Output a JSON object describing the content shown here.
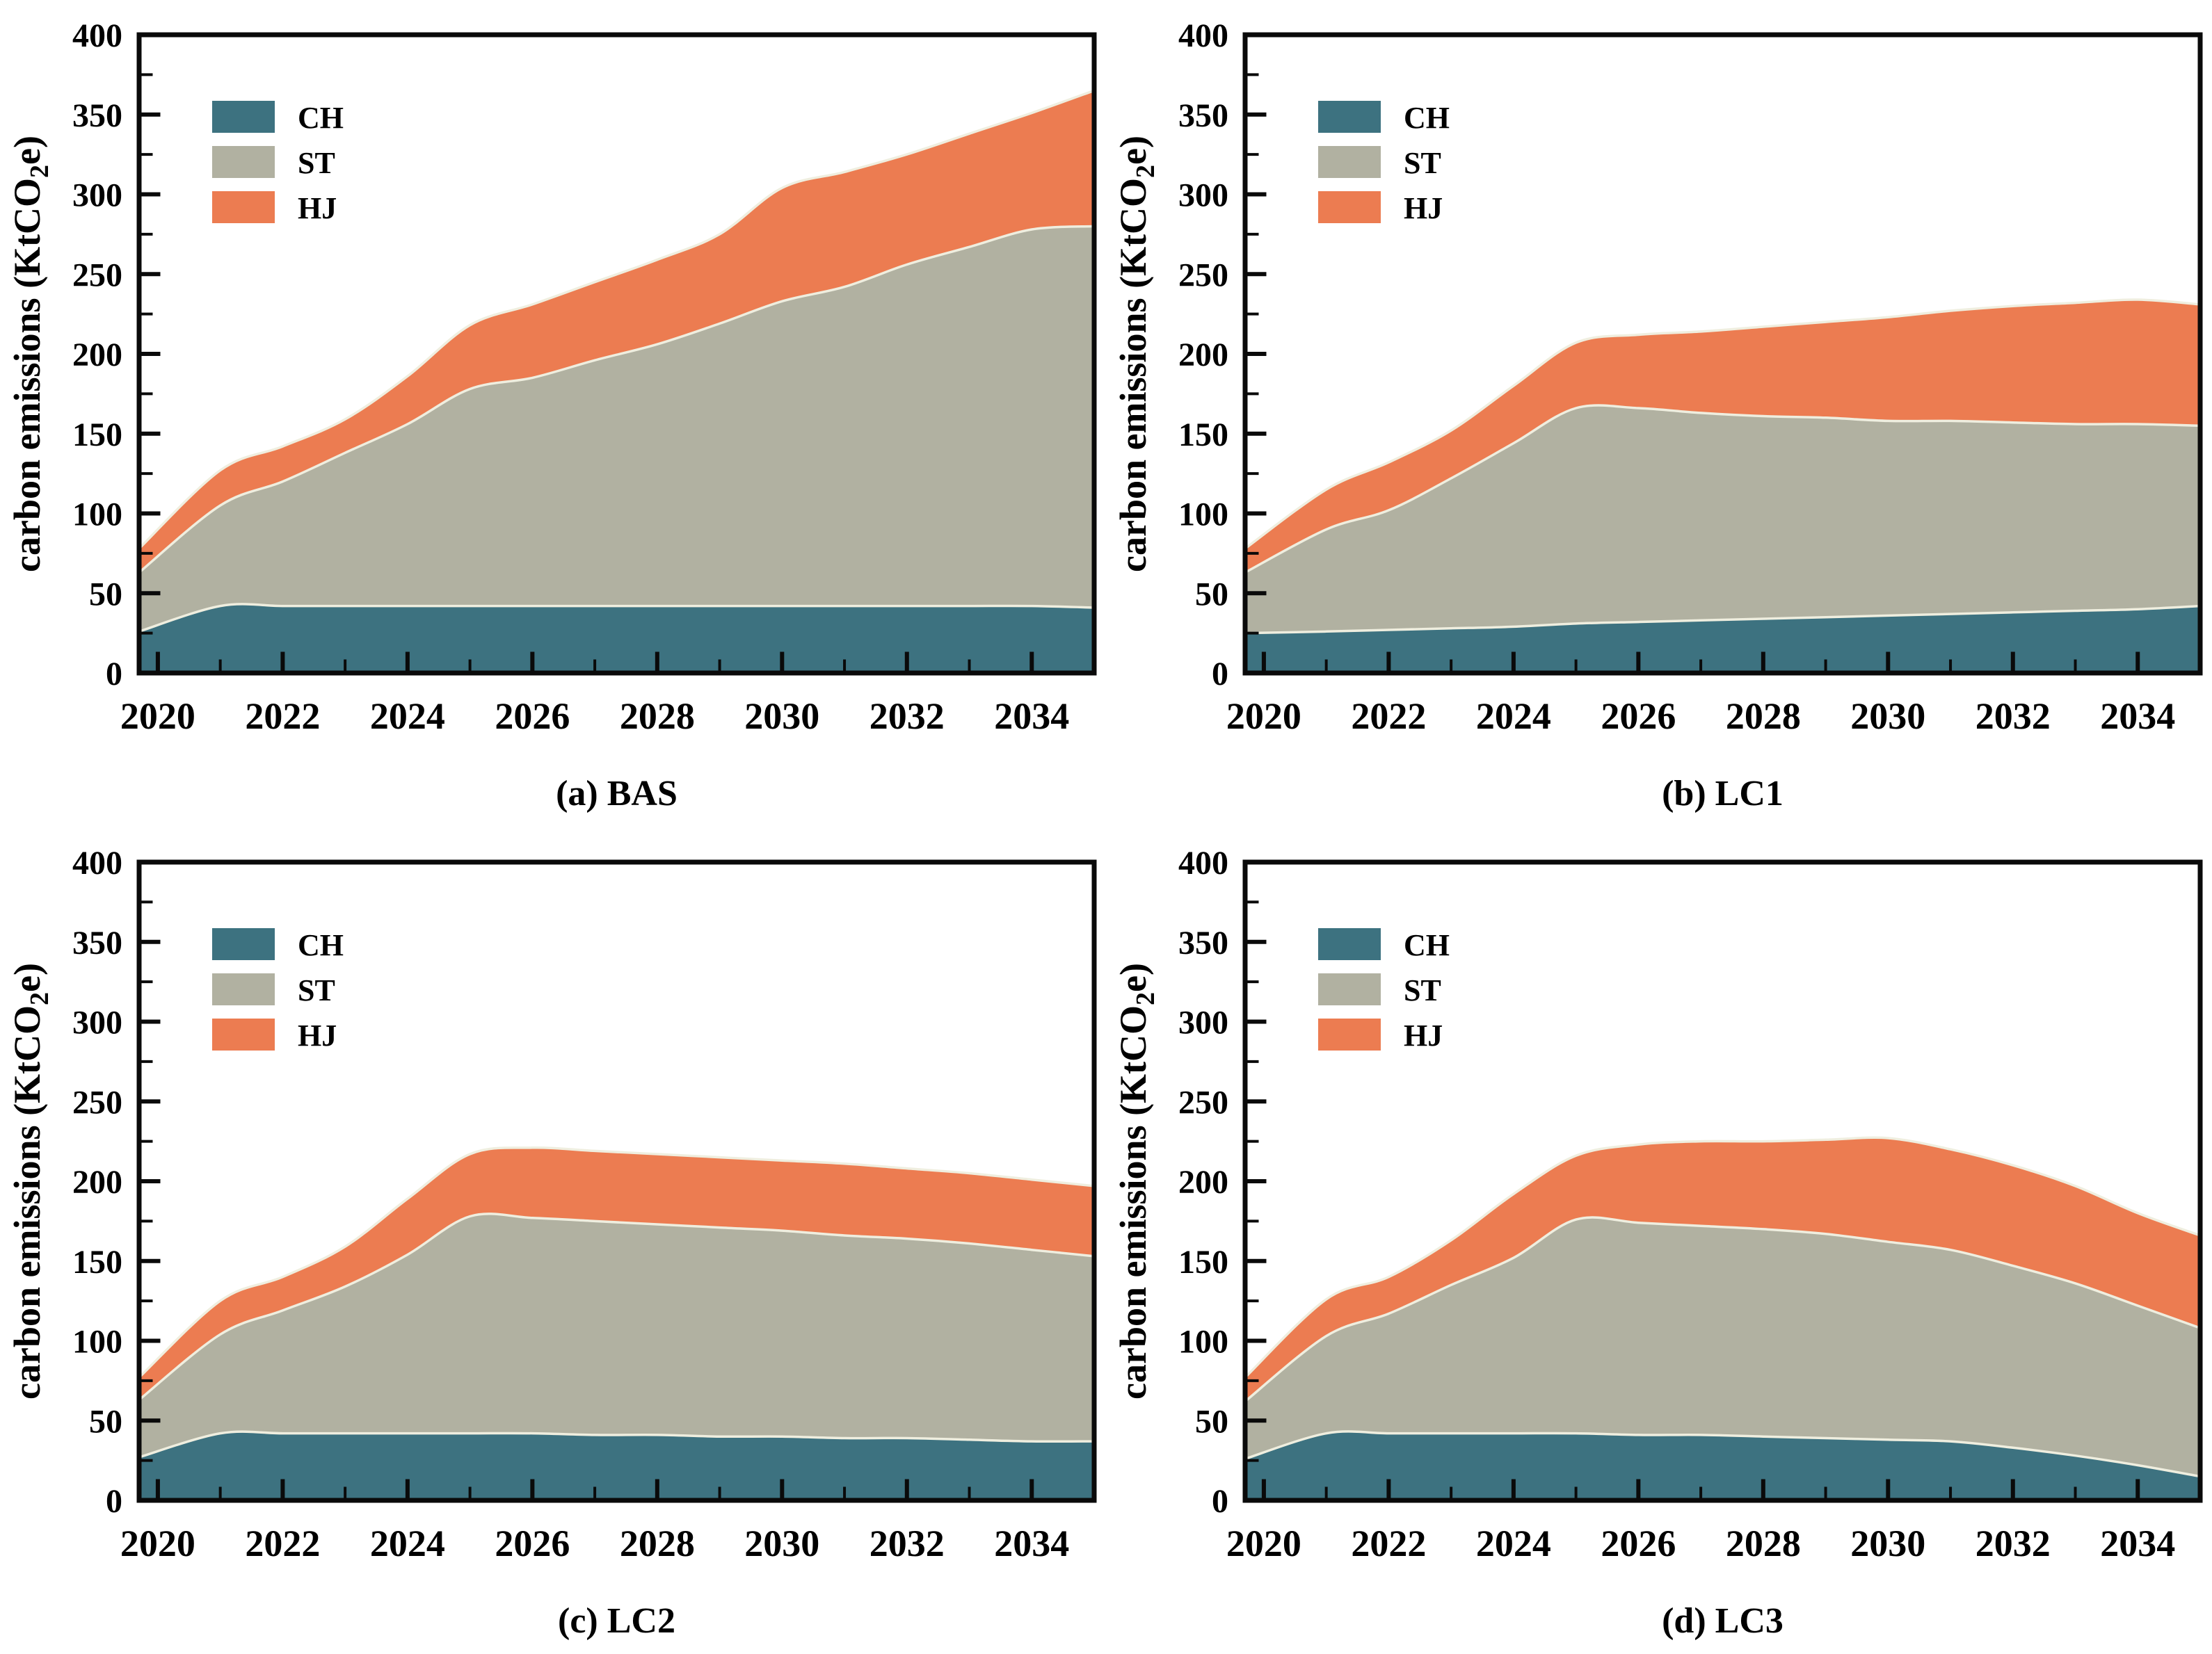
{
  "axis": {
    "ylabel": {
      "pre": "carbon emissions (KtCO",
      "sub": "2",
      "post": "e)"
    },
    "yticks": [
      0,
      50,
      100,
      150,
      200,
      250,
      300,
      350,
      400
    ],
    "xticks": [
      2020,
      2022,
      2024,
      2026,
      2028,
      2030,
      2032,
      2034
    ],
    "ylim": [
      0,
      400
    ],
    "minor_y_step": 25,
    "grid": "off",
    "legend_position": "top-left-inside"
  },
  "colors": {
    "CH": "#3D7280",
    "ST": "#B1B1A1",
    "HJ": "#EC7C51",
    "boundary": "#EFEEDF",
    "axis": "#0A0A0A",
    "background": "#FFFFFF"
  },
  "chart_data": [
    {
      "id": "bas",
      "title": "(a) BAS",
      "type": "area",
      "stacked": true,
      "ylim": [
        0,
        400
      ],
      "x": [
        2020,
        2021,
        2022,
        2023,
        2024,
        2025,
        2026,
        2027,
        2028,
        2029,
        2030,
        2031,
        2032,
        2033,
        2034,
        2035
      ],
      "series": [
        {
          "name": "CH",
          "values": [
            26,
            42,
            42,
            42,
            42,
            42,
            42,
            42,
            42,
            42,
            42,
            42,
            42,
            42,
            42,
            41
          ]
        },
        {
          "name": "ST",
          "values": [
            37,
            63,
            78,
            96,
            114,
            136,
            143,
            154,
            164,
            177,
            191,
            200,
            214,
            225,
            236,
            239
          ]
        },
        {
          "name": "HJ",
          "values": [
            15,
            22,
            22,
            21,
            30,
            40,
            46,
            49,
            53,
            56,
            71,
            72,
            69,
            71,
            73,
            85
          ]
        }
      ]
    },
    {
      "id": "lc1",
      "title": "(b) LC1",
      "type": "area",
      "stacked": true,
      "ylim": [
        0,
        400
      ],
      "x": [
        2020,
        2021,
        2022,
        2023,
        2024,
        2025,
        2026,
        2027,
        2028,
        2029,
        2030,
        2031,
        2032,
        2033,
        2034,
        2035
      ],
      "series": [
        {
          "name": "CH",
          "values": [
            25,
            26,
            27,
            28,
            29,
            31,
            32,
            33,
            34,
            35,
            36,
            37,
            38,
            39,
            40,
            42
          ]
        },
        {
          "name": "ST",
          "values": [
            38,
            64,
            75,
            94,
            115,
            135,
            134,
            130,
            127,
            125,
            122,
            121,
            119,
            117,
            116,
            113
          ]
        },
        {
          "name": "HJ",
          "values": [
            15,
            25,
            30,
            30,
            36,
            41,
            46,
            51,
            56,
            60,
            65,
            69,
            73,
            76,
            78,
            76
          ]
        }
      ]
    },
    {
      "id": "lc2",
      "title": "(c) LC2",
      "type": "area",
      "stacked": true,
      "ylim": [
        0,
        400
      ],
      "x": [
        2020,
        2021,
        2022,
        2023,
        2024,
        2025,
        2026,
        2027,
        2028,
        2029,
        2030,
        2031,
        2032,
        2033,
        2034,
        2035
      ],
      "series": [
        {
          "name": "CH",
          "values": [
            27,
            42,
            42,
            42,
            42,
            42,
            42,
            41,
            41,
            40,
            40,
            39,
            39,
            38,
            37,
            37
          ]
        },
        {
          "name": "ST",
          "values": [
            36,
            62,
            77,
            92,
            112,
            136,
            135,
            134,
            132,
            131,
            129,
            127,
            125,
            123,
            120,
            116
          ]
        },
        {
          "name": "HJ",
          "values": [
            14,
            21,
            21,
            25,
            35,
            39,
            44,
            44,
            44,
            44,
            44,
            45,
            44,
            44,
            44,
            44
          ]
        }
      ]
    },
    {
      "id": "lc3",
      "title": "(d) LC3",
      "type": "area",
      "stacked": true,
      "ylim": [
        0,
        400
      ],
      "x": [
        2020,
        2021,
        2022,
        2023,
        2024,
        2025,
        2026,
        2027,
        2028,
        2029,
        2030,
        2031,
        2032,
        2033,
        2034,
        2035
      ],
      "series": [
        {
          "name": "CH",
          "values": [
            26,
            42,
            42,
            42,
            42,
            42,
            41,
            41,
            40,
            39,
            38,
            37,
            33,
            28,
            22,
            15
          ]
        },
        {
          "name": "ST",
          "values": [
            36,
            61,
            75,
            93,
            110,
            134,
            133,
            131,
            130,
            128,
            124,
            120,
            114,
            108,
            100,
            93
          ]
        },
        {
          "name": "HJ",
          "values": [
            15,
            23,
            23,
            28,
            40,
            40,
            49,
            53,
            55,
            59,
            65,
            63,
            63,
            61,
            58,
            58
          ]
        }
      ]
    }
  ]
}
